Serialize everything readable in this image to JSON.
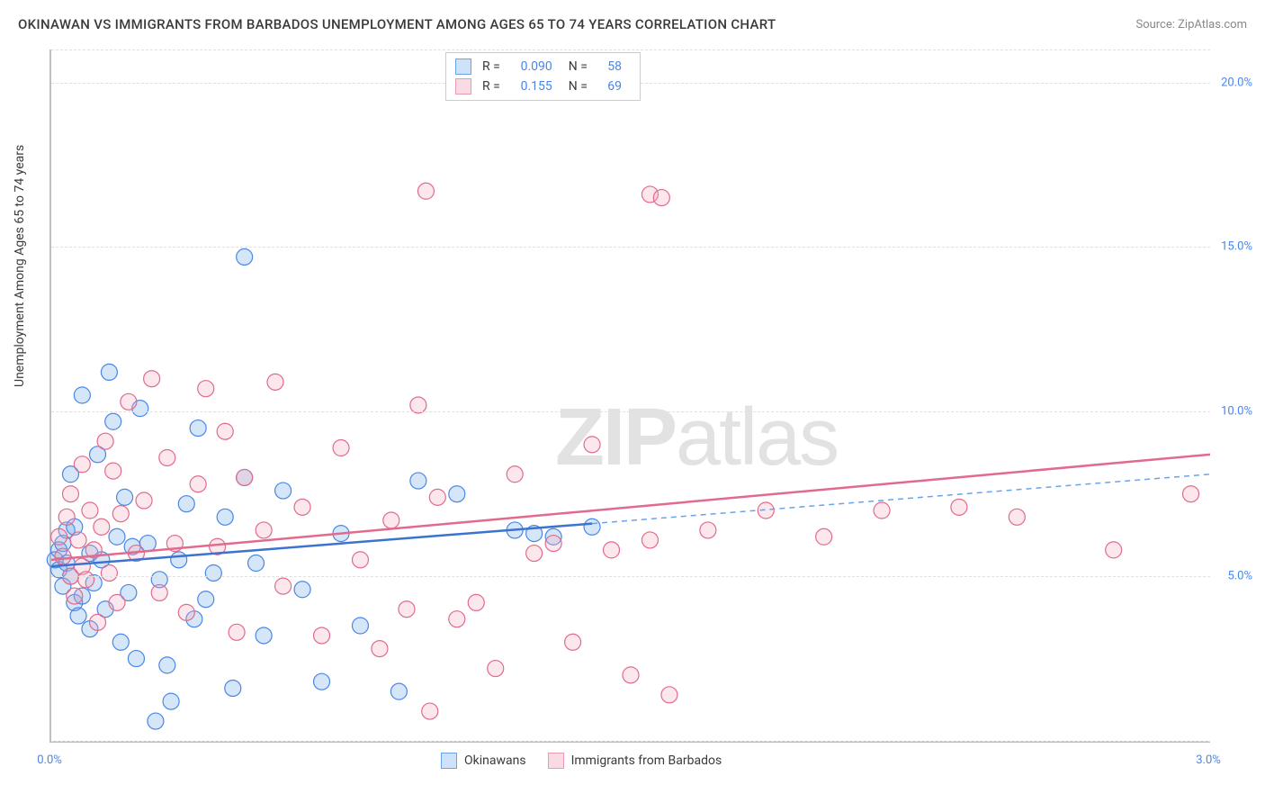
{
  "title": "OKINAWAN VS IMMIGRANTS FROM BARBADOS UNEMPLOYMENT AMONG AGES 65 TO 74 YEARS CORRELATION CHART",
  "source": "Source: ZipAtlas.com",
  "watermark_a": "ZIP",
  "watermark_b": "atlas",
  "y_axis_label": "Unemployment Among Ages 65 to 74 years",
  "chart": {
    "type": "scatter",
    "xlim": [
      0.0,
      3.0
    ],
    "ylim": [
      0.0,
      21.0
    ],
    "x_ticks": [
      {
        "v": 0.0,
        "l": "0.0%"
      },
      {
        "v": 3.0,
        "l": "3.0%"
      }
    ],
    "y_ticks": [
      {
        "v": 5.0,
        "l": "5.0%"
      },
      {
        "v": 10.0,
        "l": "10.0%"
      },
      {
        "v": 15.0,
        "l": "15.0%"
      },
      {
        "v": 20.0,
        "l": "20.0%"
      }
    ],
    "grid_y": [
      0.0,
      5.0,
      10.0,
      15.0,
      20.0,
      21.0
    ],
    "grid_color": "#e0e0e0",
    "background_color": "#ffffff",
    "axis_color": "#bfbfbf",
    "tick_label_color": "#4a86e8",
    "marker_radius": 9,
    "marker_stroke_width": 1.2,
    "marker_fill_opacity": 0.28,
    "series": [
      {
        "name": "Okinawans",
        "color": "#6aa4e8",
        "stroke": "#4a86e8",
        "trend_color": "#3b73d1",
        "trend_dash_color": "#6aa4e8",
        "trend": {
          "x0": 0.0,
          "y0": 5.3,
          "x1": 1.4,
          "y1": 6.6,
          "x2": 3.0,
          "y2": 8.1
        },
        "points": [
          [
            0.01,
            5.5
          ],
          [
            0.02,
            5.8
          ],
          [
            0.02,
            5.2
          ],
          [
            0.03,
            4.7
          ],
          [
            0.03,
            6.0
          ],
          [
            0.04,
            5.4
          ],
          [
            0.04,
            6.4
          ],
          [
            0.05,
            5.0
          ],
          [
            0.05,
            8.1
          ],
          [
            0.06,
            4.2
          ],
          [
            0.06,
            6.5
          ],
          [
            0.07,
            3.8
          ],
          [
            0.08,
            4.4
          ],
          [
            0.08,
            10.5
          ],
          [
            0.1,
            5.7
          ],
          [
            0.1,
            3.4
          ],
          [
            0.11,
            4.8
          ],
          [
            0.12,
            8.7
          ],
          [
            0.13,
            5.5
          ],
          [
            0.14,
            4.0
          ],
          [
            0.15,
            11.2
          ],
          [
            0.16,
            9.7
          ],
          [
            0.17,
            6.2
          ],
          [
            0.18,
            3.0
          ],
          [
            0.19,
            7.4
          ],
          [
            0.2,
            4.5
          ],
          [
            0.21,
            5.9
          ],
          [
            0.22,
            2.5
          ],
          [
            0.23,
            10.1
          ],
          [
            0.25,
            6.0
          ],
          [
            0.27,
            0.6
          ],
          [
            0.28,
            4.9
          ],
          [
            0.3,
            2.3
          ],
          [
            0.31,
            1.2
          ],
          [
            0.33,
            5.5
          ],
          [
            0.35,
            7.2
          ],
          [
            0.37,
            3.7
          ],
          [
            0.38,
            9.5
          ],
          [
            0.4,
            4.3
          ],
          [
            0.42,
            5.1
          ],
          [
            0.45,
            6.8
          ],
          [
            0.47,
            1.6
          ],
          [
            0.5,
            8.0
          ],
          [
            0.5,
            14.7
          ],
          [
            0.53,
            5.4
          ],
          [
            0.55,
            3.2
          ],
          [
            0.6,
            7.6
          ],
          [
            0.65,
            4.6
          ],
          [
            0.7,
            1.8
          ],
          [
            0.75,
            6.3
          ],
          [
            0.8,
            3.5
          ],
          [
            0.9,
            1.5
          ],
          [
            0.95,
            7.9
          ],
          [
            1.05,
            7.5
          ],
          [
            1.2,
            6.4
          ],
          [
            1.25,
            6.3
          ],
          [
            1.3,
            6.2
          ],
          [
            1.4,
            6.5
          ]
        ]
      },
      {
        "name": "Immigrants from Barbados",
        "color": "#f5a8bb",
        "stroke": "#e26a8c",
        "trend_color": "#e26a8c",
        "trend": {
          "x0": 0.0,
          "y0": 5.5,
          "x1": 3.0,
          "y1": 8.7
        },
        "points": [
          [
            0.02,
            6.2
          ],
          [
            0.03,
            5.6
          ],
          [
            0.04,
            6.8
          ],
          [
            0.05,
            5.0
          ],
          [
            0.05,
            7.5
          ],
          [
            0.06,
            4.4
          ],
          [
            0.07,
            6.1
          ],
          [
            0.08,
            5.3
          ],
          [
            0.08,
            8.4
          ],
          [
            0.09,
            4.9
          ],
          [
            0.1,
            7.0
          ],
          [
            0.11,
            5.8
          ],
          [
            0.12,
            3.6
          ],
          [
            0.13,
            6.5
          ],
          [
            0.14,
            9.1
          ],
          [
            0.15,
            5.1
          ],
          [
            0.16,
            8.2
          ],
          [
            0.17,
            4.2
          ],
          [
            0.18,
            6.9
          ],
          [
            0.2,
            10.3
          ],
          [
            0.22,
            5.7
          ],
          [
            0.24,
            7.3
          ],
          [
            0.26,
            11.0
          ],
          [
            0.28,
            4.5
          ],
          [
            0.3,
            8.6
          ],
          [
            0.32,
            6.0
          ],
          [
            0.35,
            3.9
          ],
          [
            0.38,
            7.8
          ],
          [
            0.4,
            10.7
          ],
          [
            0.43,
            5.9
          ],
          [
            0.45,
            9.4
          ],
          [
            0.48,
            3.3
          ],
          [
            0.5,
            8.0
          ],
          [
            0.55,
            6.4
          ],
          [
            0.58,
            10.9
          ],
          [
            0.6,
            4.7
          ],
          [
            0.65,
            7.1
          ],
          [
            0.7,
            3.2
          ],
          [
            0.75,
            8.9
          ],
          [
            0.8,
            5.5
          ],
          [
            0.85,
            2.8
          ],
          [
            0.88,
            6.7
          ],
          [
            0.92,
            4.0
          ],
          [
            0.95,
            10.2
          ],
          [
            0.97,
            16.7
          ],
          [
            0.98,
            0.9
          ],
          [
            1.0,
            7.4
          ],
          [
            1.05,
            3.7
          ],
          [
            1.1,
            4.2
          ],
          [
            1.15,
            2.2
          ],
          [
            1.2,
            8.1
          ],
          [
            1.25,
            5.7
          ],
          [
            1.3,
            6.0
          ],
          [
            1.35,
            3.0
          ],
          [
            1.4,
            9.0
          ],
          [
            1.45,
            5.8
          ],
          [
            1.5,
            2.0
          ],
          [
            1.55,
            16.6
          ],
          [
            1.58,
            16.5
          ],
          [
            1.55,
            6.1
          ],
          [
            1.6,
            1.4
          ],
          [
            1.7,
            6.4
          ],
          [
            1.85,
            7.0
          ],
          [
            2.0,
            6.2
          ],
          [
            2.15,
            7.0
          ],
          [
            2.35,
            7.1
          ],
          [
            2.75,
            5.8
          ],
          [
            2.95,
            7.5
          ],
          [
            2.5,
            6.8
          ]
        ]
      }
    ]
  },
  "stats_legend": {
    "rows": [
      {
        "swatch_fill": "#cfe2fb",
        "swatch_stroke": "#6aa4e8",
        "r_label": "R =",
        "r_val": "0.090",
        "n_label": "N =",
        "n_val": "58"
      },
      {
        "swatch_fill": "#fadbe3",
        "swatch_stroke": "#e89ab0",
        "r_label": "R =",
        "r_val": "0.155",
        "n_label": "N =",
        "n_val": "69"
      }
    ]
  },
  "bottom_legend": {
    "items": [
      {
        "swatch_fill": "#cfe2fb",
        "swatch_stroke": "#6aa4e8",
        "label": "Okinawans"
      },
      {
        "swatch_fill": "#fadbe3",
        "swatch_stroke": "#e89ab0",
        "label": "Immigrants from Barbados"
      }
    ]
  }
}
